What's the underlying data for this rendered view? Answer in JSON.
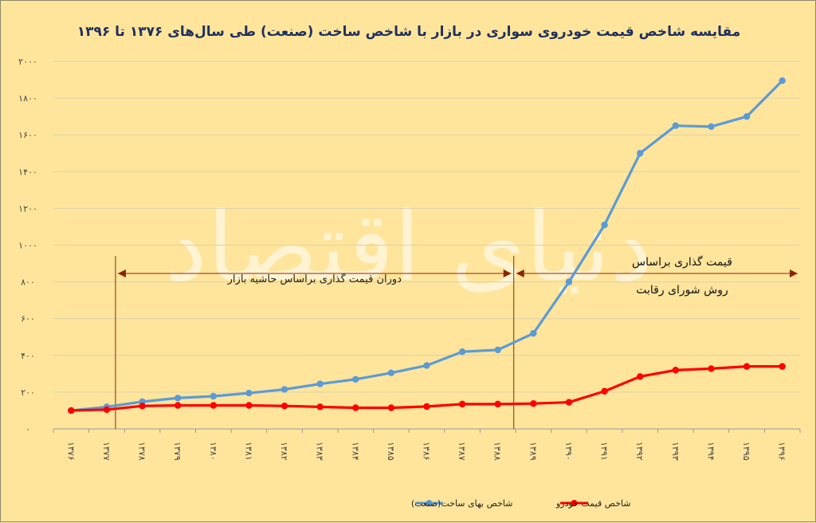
{
  "chart_data": {
    "type": "line",
    "title": "مقایسه شاخص قیمت خودروی سواری در بازار با شاخص ساخت (صنعت) طی سال‌های ۱۳۷۶ تا ۱۳۹۶",
    "xlabel": "",
    "ylabel": "",
    "categories": [
      "۱۳۷۶",
      "۱۳۷۷",
      "۱۳۷۸",
      "۱۳۷۹",
      "۱۳۸۰",
      "۱۳۸۱",
      "۱۳۸۲",
      "۱۳۸۳",
      "۱۳۸۴",
      "۱۳۸۵",
      "۱۳۸۶",
      "۱۳۸۷",
      "۱۳۸۸",
      "۱۳۸۹",
      "۱۳۹۰",
      "۱۳۹۱",
      "۱۳۹۲",
      "۱۳۹۳",
      "۱۳۹۴",
      "۱۳۹۵",
      "۱۳۹۶"
    ],
    "ylim": [
      0,
      2000
    ],
    "yticks": [
      0,
      200,
      400,
      600,
      800,
      1000,
      1200,
      1400,
      1600,
      1800,
      2000
    ],
    "ytick_labels": [
      "۰",
      "۲۰۰",
      "۴۰۰",
      "۶۰۰",
      "۸۰۰",
      "۱۰۰۰",
      "۱۲۰۰",
      "۱۴۰۰",
      "۱۶۰۰",
      "۱۸۰۰",
      "۲۰۰۰"
    ],
    "grid": true,
    "legend_position": "bottom",
    "series": [
      {
        "name": "شاخص بهای ساخت(صنعت)",
        "color": "#5b9bd5",
        "values": [
          100,
          120,
          148,
          168,
          178,
          195,
          215,
          245,
          270,
          305,
          345,
          420,
          430,
          520,
          800,
          1110,
          1500,
          1650,
          1645,
          1700,
          1895
        ]
      },
      {
        "name": "شاخص قیمت خودرو",
        "color": "#ff0000",
        "values": [
          100,
          105,
          125,
          128,
          128,
          128,
          125,
          120,
          115,
          115,
          122,
          135,
          135,
          138,
          145,
          205,
          285,
          320,
          328,
          340,
          340
        ]
      }
    ],
    "annotations": [
      {
        "text": "دوران قیمت گذاری براساس حاشیه بازار",
        "from_category": "۱۳۷۷",
        "to_category": "۱۳۸۸"
      },
      {
        "text_lines": [
          "قیمت گذاری براساس",
          "روش شورای رقابت"
        ],
        "from_category": "۱۳۸۸",
        "to_category": "۱۳۹۶"
      }
    ],
    "watermark": "دنیای اقتصاد"
  }
}
